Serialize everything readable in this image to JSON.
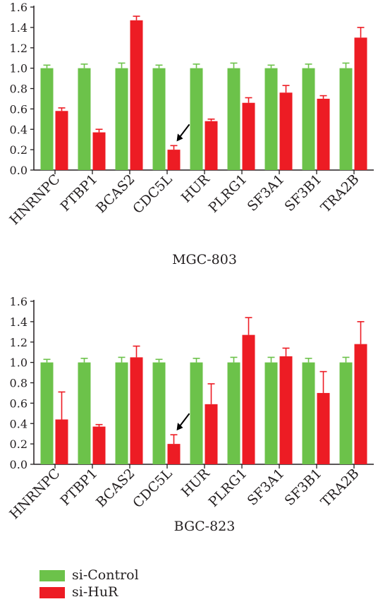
{
  "colors": {
    "si_control": "#6cc24a",
    "si_hur": "#ed1c24",
    "axis": "#231f20"
  },
  "legend": [
    {
      "label": "si-Control",
      "color": "#6cc24a"
    },
    {
      "label": "si-HuR",
      "color": "#ed1c24"
    }
  ],
  "chart_data": [
    {
      "type": "bar",
      "title": "MGC-803",
      "categories": [
        "HNRNPC",
        "PTBP1",
        "BCAS2",
        "CDC5L",
        "HUR",
        "PLRG1",
        "SF3A1",
        "SF3B1",
        "TRA2B"
      ],
      "series": [
        {
          "name": "si-Control",
          "values": [
            1.0,
            1.0,
            1.0,
            1.0,
            1.0,
            1.0,
            1.0,
            1.0,
            1.0
          ],
          "errors": [
            0.03,
            0.04,
            0.05,
            0.03,
            0.04,
            0.05,
            0.03,
            0.04,
            0.05
          ]
        },
        {
          "name": "si-HuR",
          "values": [
            0.58,
            0.37,
            1.47,
            0.2,
            0.48,
            0.66,
            0.76,
            0.7,
            1.3
          ],
          "errors": [
            0.03,
            0.03,
            0.04,
            0.04,
            0.02,
            0.05,
            0.07,
            0.03,
            0.1
          ]
        }
      ],
      "ylim": [
        0,
        1.6
      ],
      "yticks": [
        "0.0",
        "0.2",
        "0.4",
        "0.6",
        "0.8",
        "1.0",
        "1.2",
        "1.4",
        "1.6"
      ],
      "arrow_category": "CDC5L"
    },
    {
      "type": "bar",
      "title": "BGC-823",
      "categories": [
        "HNRNPC",
        "PTBP1",
        "BCAS2",
        "CDC5L",
        "HUR",
        "PLRG1",
        "SF3A1",
        "SF3B1",
        "TRA2B"
      ],
      "series": [
        {
          "name": "si-Control",
          "values": [
            1.0,
            1.0,
            1.0,
            1.0,
            1.0,
            1.0,
            1.0,
            1.0,
            1.0
          ],
          "errors": [
            0.03,
            0.04,
            0.05,
            0.03,
            0.04,
            0.05,
            0.05,
            0.04,
            0.05
          ]
        },
        {
          "name": "si-HuR",
          "values": [
            0.44,
            0.37,
            1.05,
            0.2,
            0.59,
            1.27,
            1.06,
            0.7,
            1.18
          ],
          "errors": [
            0.27,
            0.02,
            0.11,
            0.09,
            0.2,
            0.17,
            0.08,
            0.21,
            0.22
          ]
        }
      ],
      "ylim": [
        0,
        1.6
      ],
      "yticks": [
        "0.0",
        "0.2",
        "0.4",
        "0.6",
        "0.8",
        "1.0",
        "1.2",
        "1.4",
        "1.6"
      ],
      "arrow_category": "CDC5L"
    }
  ]
}
